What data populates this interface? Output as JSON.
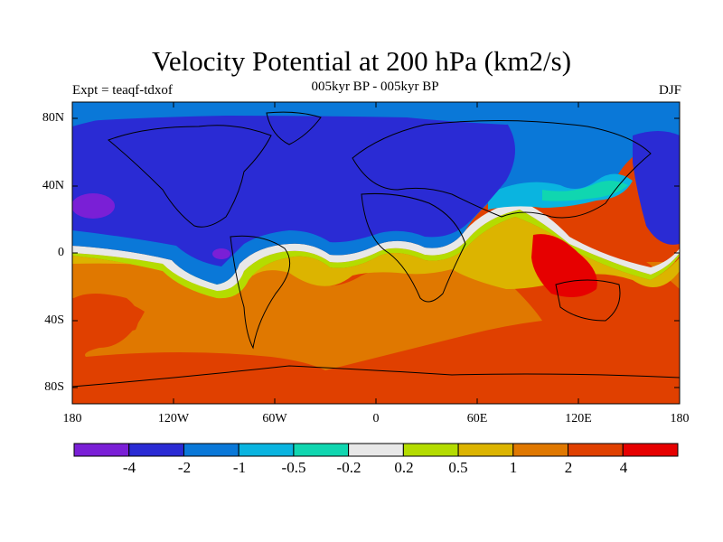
{
  "title": "Velocity Potential at 200 hPa (km2/s)",
  "subtitle": "005kyr BP - 005kyr BP",
  "experiment": "Expt = teaqf-tdxof",
  "season": "DJF",
  "lat_labels": [
    "80N",
    "40N",
    "0",
    "40S",
    "80S"
  ],
  "lon_labels": [
    "180",
    "120W",
    "60W",
    "0",
    "60E",
    "120E",
    "180"
  ],
  "colorbar": {
    "labels": [
      "-4",
      "-2",
      "-1",
      "-0.5",
      "-0.2",
      "0.2",
      "0.5",
      "1",
      "2",
      "4"
    ],
    "colors": [
      "#7a1fd6",
      "#2a2bd4",
      "#0a78d8",
      "#0ab4e0",
      "#10d6b0",
      "#e8e8e8",
      "#b4dc00",
      "#dcb400",
      "#e07800",
      "#e04000",
      "#e60000"
    ]
  },
  "chart_data": {
    "type": "heatmap",
    "title": "Velocity Potential at 200 hPa (km2/s)",
    "xlabel": "",
    "ylabel": "",
    "x_ticks": [
      "180",
      "120W",
      "60W",
      "0",
      "60E",
      "120E",
      "180"
    ],
    "y_ticks": [
      "80N",
      "40N",
      "0",
      "40S",
      "80S"
    ],
    "xlim": [
      -180,
      180
    ],
    "ylim": [
      -90,
      90
    ],
    "levels": [
      -4,
      -2,
      -1,
      -0.5,
      -0.2,
      0.2,
      0.5,
      1,
      2,
      4
    ]
  }
}
